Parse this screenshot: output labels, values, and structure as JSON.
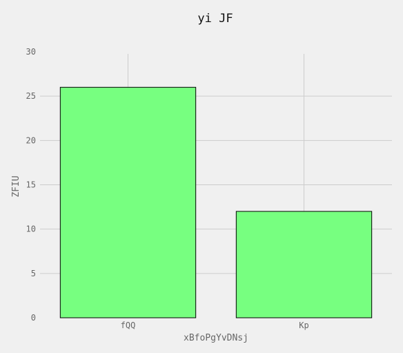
{
  "chart_data": {
    "type": "bar",
    "title": "yi JF",
    "xlabel": "xBfoPgYvDNsj",
    "ylabel": "ZFIU",
    "categories": [
      "fQQ",
      "Kp"
    ],
    "values": [
      26,
      12
    ],
    "ylim": [
      0,
      30
    ],
    "yticks": [
      0,
      5,
      10,
      15,
      20,
      25,
      30
    ],
    "grid": true,
    "colors": {
      "bar_fill": "#77ff80",
      "bar_edge": "#000000",
      "grid": "#cccccc",
      "background": "#f0f0f0"
    }
  }
}
